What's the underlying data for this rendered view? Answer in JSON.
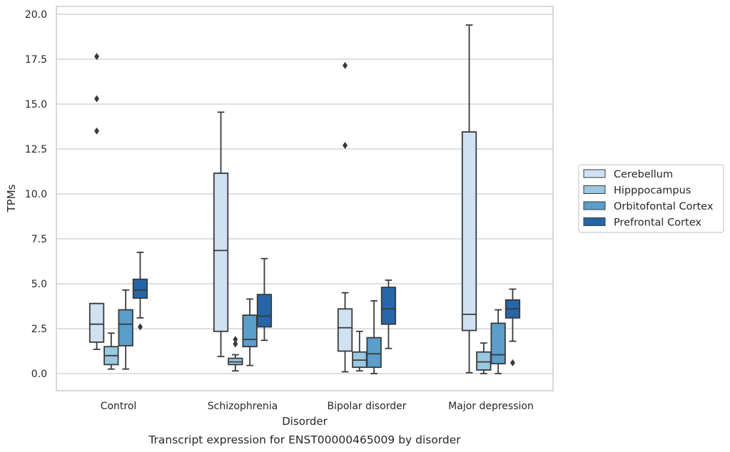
{
  "chart_data": {
    "type": "box",
    "caption": "Transcript expression for ENST00000465009 by disorder",
    "xlabel": "Disorder",
    "ylabel": "TPMs",
    "ylim": [
      -0.95,
      20.4
    ],
    "yticks": [
      "0.0",
      "2.5",
      "5.0",
      "7.5",
      "10.0",
      "12.5",
      "15.0",
      "17.5",
      "20.0"
    ],
    "categories": [
      "Control",
      "Schizophrenia",
      "Bipolar disorder",
      "Major depression"
    ],
    "grid": true,
    "legend_position": "right",
    "series": [
      {
        "name": "Cerebellum",
        "color": "#d0e1f2",
        "boxes": [
          {
            "category": "Control",
            "whislo": 1.35,
            "q1": 1.75,
            "median": 2.75,
            "q3": 3.9,
            "whishi": 3.9,
            "fliers": [
              13.5,
              15.3,
              17.65
            ]
          },
          {
            "category": "Schizophrenia",
            "whislo": 0.95,
            "q1": 2.35,
            "median": 6.85,
            "q3": 11.15,
            "whishi": 14.55,
            "fliers": []
          },
          {
            "category": "Bipolar disorder",
            "whislo": 0.1,
            "q1": 1.25,
            "median": 2.55,
            "q3": 3.6,
            "whishi": 4.5,
            "fliers": [
              12.7,
              17.15
            ]
          },
          {
            "category": "Major depression",
            "whislo": 0.05,
            "q1": 2.4,
            "median": 3.3,
            "q3": 13.45,
            "whishi": 19.4,
            "fliers": []
          }
        ]
      },
      {
        "name": "Hipppocampus",
        "color": "#9ac8e0",
        "boxes": [
          {
            "category": "Control",
            "whislo": 0.25,
            "q1": 0.5,
            "median": 1.0,
            "q3": 1.5,
            "whishi": 2.25,
            "fliers": []
          },
          {
            "category": "Schizophrenia",
            "whislo": 0.15,
            "q1": 0.5,
            "median": 0.65,
            "q3": 0.85,
            "whishi": 1.05,
            "fliers": [
              1.65,
              1.9
            ]
          },
          {
            "category": "Bipolar disorder",
            "whislo": 0.15,
            "q1": 0.35,
            "median": 0.75,
            "q3": 1.2,
            "whishi": 2.35,
            "fliers": []
          },
          {
            "category": "Major depression",
            "whislo": 0.0,
            "q1": 0.2,
            "median": 0.65,
            "q3": 1.2,
            "whishi": 1.7,
            "fliers": []
          }
        ]
      },
      {
        "name": "Orbitofontal Cortex",
        "color": "#5a9ec9",
        "boxes": [
          {
            "category": "Control",
            "whislo": 0.25,
            "q1": 1.55,
            "median": 2.75,
            "q3": 3.55,
            "whishi": 4.65,
            "fliers": []
          },
          {
            "category": "Schizophrenia",
            "whislo": 0.45,
            "q1": 1.5,
            "median": 1.9,
            "q3": 3.25,
            "whishi": 4.15,
            "fliers": []
          },
          {
            "category": "Bipolar disorder",
            "whislo": 0.0,
            "q1": 0.35,
            "median": 1.1,
            "q3": 2.0,
            "whishi": 4.05,
            "fliers": []
          },
          {
            "category": "Major depression",
            "whislo": 0.0,
            "q1": 0.55,
            "median": 1.05,
            "q3": 2.8,
            "whishi": 3.55,
            "fliers": []
          }
        ]
      },
      {
        "name": "Prefrontal Cortex",
        "color": "#2666a8",
        "boxes": [
          {
            "category": "Control",
            "whislo": 3.1,
            "q1": 4.2,
            "median": 4.65,
            "q3": 5.25,
            "whishi": 6.75,
            "fliers": [
              2.6
            ]
          },
          {
            "category": "Schizophrenia",
            "whislo": 1.85,
            "q1": 2.6,
            "median": 3.2,
            "q3": 4.4,
            "whishi": 6.4,
            "fliers": []
          },
          {
            "category": "Bipolar disorder",
            "whislo": 1.4,
            "q1": 2.75,
            "median": 3.6,
            "q3": 4.8,
            "whishi": 5.2,
            "fliers": []
          },
          {
            "category": "Major depression",
            "whislo": 1.8,
            "q1": 3.1,
            "median": 3.6,
            "q3": 4.1,
            "whishi": 4.7,
            "fliers": [
              0.6
            ]
          }
        ]
      }
    ]
  }
}
